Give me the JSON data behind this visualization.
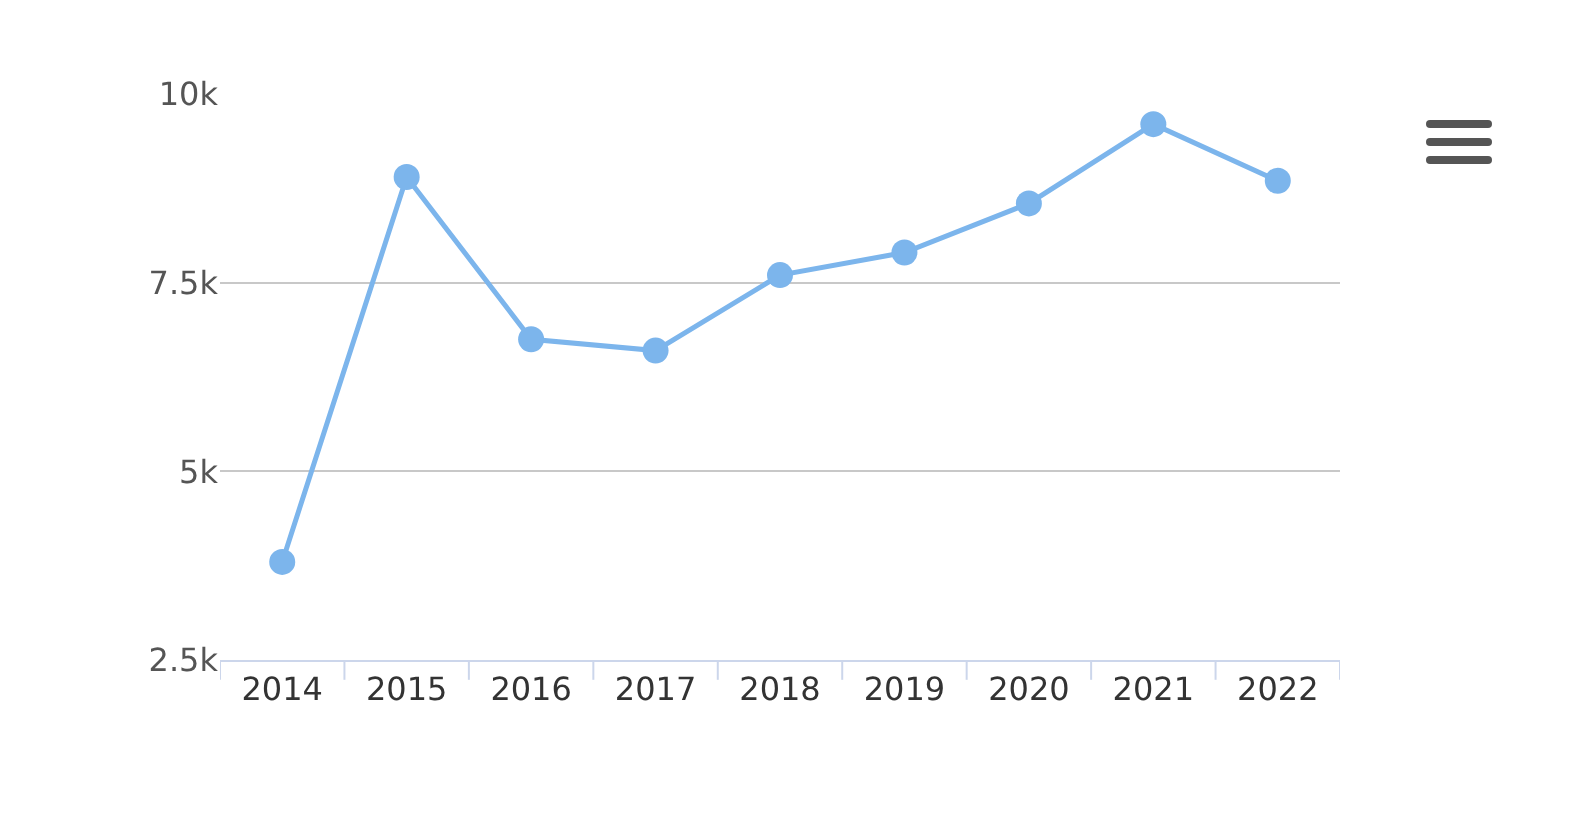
{
  "chart_data": {
    "type": "line",
    "categories": [
      "2014",
      "2015",
      "2016",
      "2017",
      "2018",
      "2019",
      "2020",
      "2021",
      "2022"
    ],
    "series": [
      {
        "color": "#7cb5ec",
        "values": [
          3800,
          8900,
          6750,
          6600,
          7600,
          7900,
          8550,
          9600,
          8850
        ]
      }
    ],
    "ylim": [
      2500,
      10000
    ],
    "yticks": [
      {
        "value": 2500,
        "label": "2.5k"
      },
      {
        "value": 5000,
        "label": "5k"
      },
      {
        "value": 7500,
        "label": "7.5k"
      },
      {
        "value": 10000,
        "label": "10k"
      }
    ],
    "grid": "y",
    "legend": false,
    "marker": "circle",
    "line_style": "solid"
  }
}
